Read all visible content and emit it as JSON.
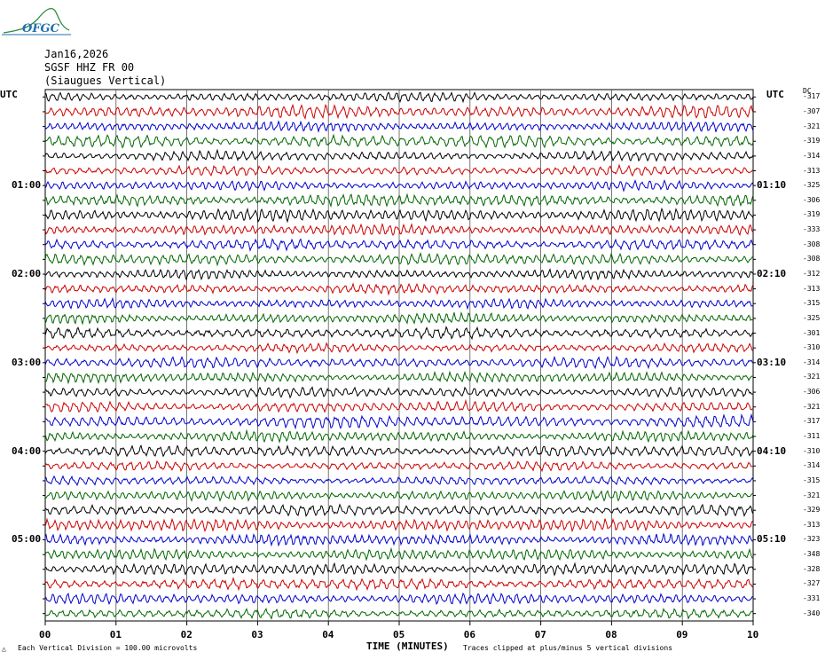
{
  "logo": {
    "text": "OFGC",
    "color": "#1f6fb0",
    "wave_color": "#2e8b3c"
  },
  "header": {
    "date": "Jan16,2026",
    "station": "SGSF HHZ FR 00",
    "location": "(Siaugues Vertical)"
  },
  "utc_left_label": "UTC",
  "utc_right_label": "UTC",
  "dc_label": "DC",
  "footer": {
    "left": "Each Vertical Division =  100.00 microvolts",
    "center": "TIME (MINUTES)",
    "right": "Traces clipped at plus/minus 5 vertical divisions"
  },
  "trace_colors": [
    "#000000",
    "#cc0000",
    "#0000cc",
    "#006600"
  ],
  "chart_data": {
    "type": "line",
    "title": "",
    "xlabel": "TIME (MINUTES)",
    "ylabel": "",
    "xlim": [
      0,
      10
    ],
    "x_ticks": [
      "00",
      "01",
      "02",
      "03",
      "04",
      "05",
      "06",
      "07",
      "08",
      "09",
      "10"
    ],
    "grid": true,
    "left_hour_labels": [
      {
        "row": 6,
        "label": "01:00"
      },
      {
        "row": 12,
        "label": "02:00"
      },
      {
        "row": 18,
        "label": "03:00"
      },
      {
        "row": 24,
        "label": "04:00"
      },
      {
        "row": 30,
        "label": "05:00"
      }
    ],
    "right_hour_labels": [
      {
        "row": 6,
        "label": "01:10"
      },
      {
        "row": 12,
        "label": "02:10"
      },
      {
        "row": 18,
        "label": "03:10"
      },
      {
        "row": 24,
        "label": "04:10"
      },
      {
        "row": 30,
        "label": "05:10"
      }
    ],
    "dc_offsets": [
      "-317",
      "-307",
      "-321",
      "-319",
      "-314",
      "-313",
      "-325",
      "-306",
      "-319",
      "-333",
      "-308",
      "-308",
      "-312",
      "-313",
      "-315",
      "-325",
      "-301",
      "-310",
      "-314",
      "-321",
      "-306",
      "-321",
      "-317",
      "-311",
      "-310",
      "-314",
      "-315",
      "-321",
      "-329",
      "-313",
      "-323",
      "-348",
      "-328",
      "-327",
      "-331",
      "-340"
    ]
  }
}
